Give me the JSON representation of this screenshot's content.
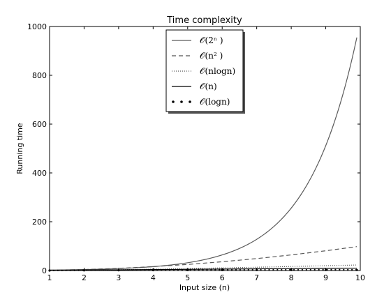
{
  "chart_data": {
    "type": "line",
    "title": "Time complexity",
    "xlabel": "Input size (n)",
    "ylabel": "Running time",
    "xlim": [
      1,
      10
    ],
    "ylim": [
      0,
      1000
    ],
    "xticks": [
      "1",
      "2",
      "3",
      "4",
      "5",
      "6",
      "7",
      "8",
      "9",
      "10"
    ],
    "yticks": [
      "0",
      "200",
      "400",
      "600",
      "800",
      "1000"
    ],
    "grid": false,
    "legend_position": "top-center",
    "x": [
      1,
      2,
      3,
      4,
      5,
      6,
      7,
      8,
      9,
      9.9
    ],
    "series": [
      {
        "name": "𝒪(2ⁿ )",
        "style": "solid",
        "color": "#5a5a5a",
        "values": [
          2,
          4,
          8,
          16,
          32,
          64,
          128,
          256,
          512,
          955
        ]
      },
      {
        "name": "𝒪(n² )",
        "style": "dashed",
        "color": "#555555",
        "values": [
          1,
          4,
          9,
          16,
          25,
          36,
          49,
          64,
          81,
          98
        ]
      },
      {
        "name": "𝒪(nlogn)",
        "style": "dotted",
        "color": "#555555",
        "values": [
          0,
          1.4,
          3.3,
          5.5,
          8.0,
          10.8,
          13.6,
          16.6,
          19.8,
          22.7
        ]
      },
      {
        "name": "𝒪(n)",
        "style": "solid",
        "color": "#000000",
        "values": [
          1,
          2,
          3,
          4,
          5,
          6,
          7,
          8,
          9,
          9.9
        ]
      },
      {
        "name": "𝒪(logn)",
        "style": "dots",
        "color": "#000000",
        "values": [
          0,
          0.7,
          1.1,
          1.4,
          1.6,
          1.8,
          1.9,
          2.1,
          2.2,
          2.3
        ]
      }
    ]
  }
}
